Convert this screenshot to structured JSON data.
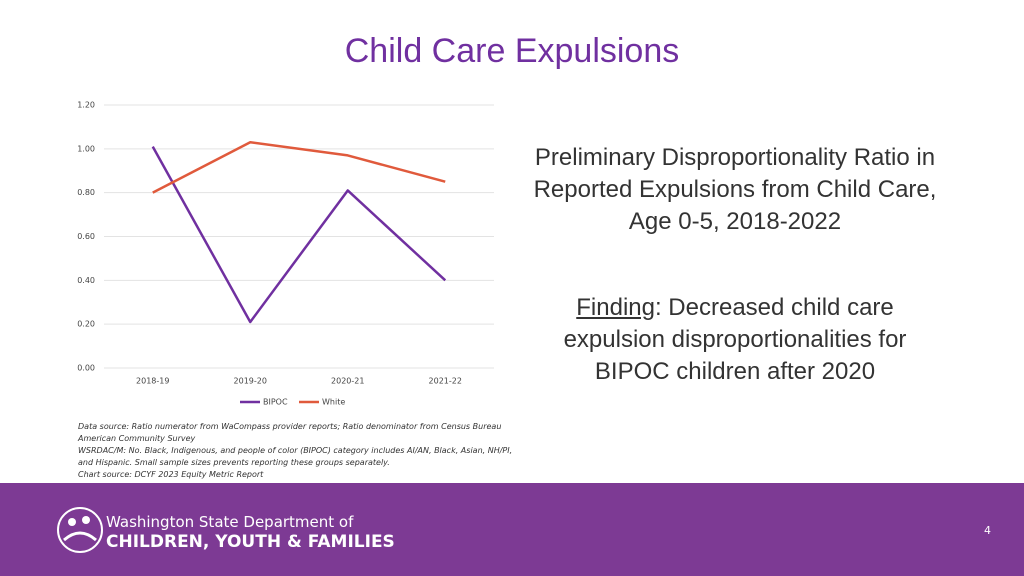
{
  "title": "Child Care Expulsions",
  "description": "Preliminary Disproportionality Ratio in Reported Expulsions from Child Care, Age 0-5, 2018-2022",
  "finding": {
    "label": "Finding",
    "text": ": Decreased child care expulsion disproportionalities for BIPOC children after 2020"
  },
  "notes": [
    "Data source: Ratio numerator from WaCompass provider reports; Ratio denominator from Census Bureau",
    "American Community Survey",
    "WSRDAC/M: No. Black, Indigenous, and people of color (BIPOC) category includes AI/AN, Black, Asian, NH/PI,",
    "and Hispanic. Small sample sizes prevents reporting these groups separately.",
    "Chart source: DCYF 2023 Equity Metric Report"
  ],
  "footer": {
    "org_line1": "Washington State Department of",
    "org_line2": "CHILDREN, YOUTH & FAMILIES",
    "page_number": "4"
  },
  "chart_data": {
    "type": "line",
    "categories": [
      "2018-19",
      "2019-20",
      "2020-21",
      "2021-22"
    ],
    "series": [
      {
        "name": "BIPOC",
        "color": "#7030a0",
        "values": [
          1.01,
          0.21,
          0.81,
          0.4
        ]
      },
      {
        "name": "White",
        "color": "#e05a3c",
        "values": [
          0.8,
          1.03,
          0.97,
          0.85
        ]
      }
    ],
    "ylim": [
      0,
      1.2
    ],
    "yticks": [
      {
        "value": 0,
        "label": "0.00"
      },
      {
        "value": 0.2,
        "label": "0.20"
      },
      {
        "value": 0.4,
        "label": "0.40"
      },
      {
        "value": 0.6,
        "label": "0.60"
      },
      {
        "value": 0.8,
        "label": "0.80"
      },
      {
        "value": 1,
        "label": "1.00"
      },
      {
        "value": 1.2,
        "label": "1.20"
      }
    ],
    "grid": true,
    "legend": "bottom"
  }
}
